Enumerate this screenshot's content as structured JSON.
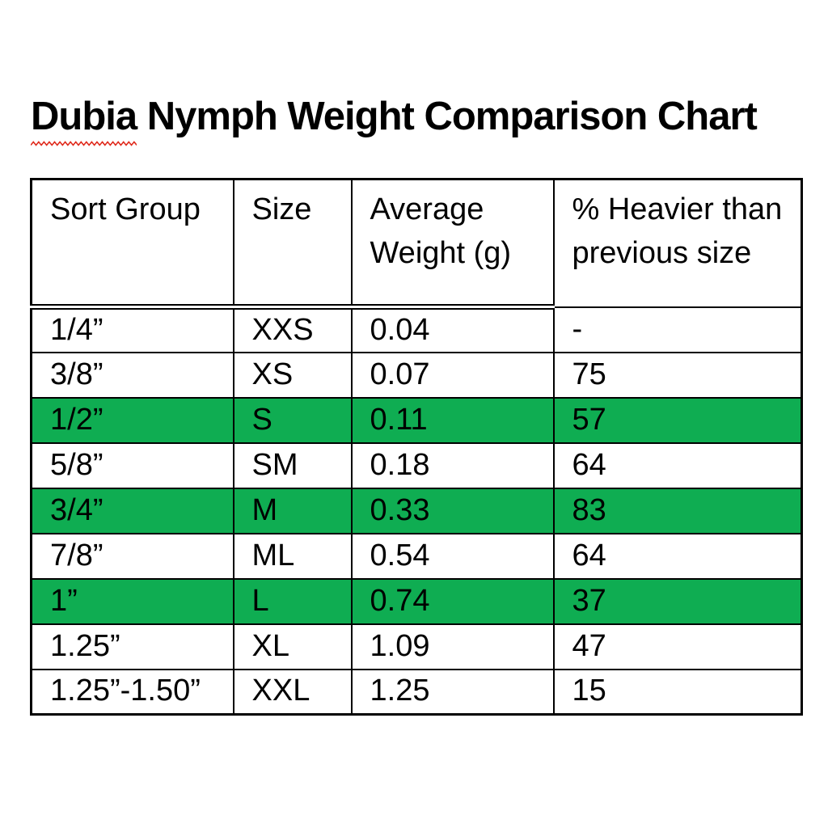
{
  "title": {
    "misspelled_word": "Dubia",
    "rest": " Nymph Weight Comparison Chart",
    "spellcheck_color": "#e02b1d"
  },
  "table": {
    "highlight_color": "#0fad52",
    "columns": [
      "Sort Group",
      "Size",
      "Average Weight (g)",
      "% Heavier than previous size"
    ],
    "rows": [
      {
        "cells": [
          "1/4”",
          "XXS",
          "0.04",
          "-"
        ],
        "highlighted": false
      },
      {
        "cells": [
          "3/8”",
          "XS",
          "0.07",
          "75"
        ],
        "highlighted": false
      },
      {
        "cells": [
          "1/2”",
          "S",
          "0.11",
          "57"
        ],
        "highlighted": true
      },
      {
        "cells": [
          "5/8”",
          "SM",
          "0.18",
          "64"
        ],
        "highlighted": false
      },
      {
        "cells": [
          "3/4”",
          "M",
          "0.33",
          "83"
        ],
        "highlighted": true
      },
      {
        "cells": [
          "7/8”",
          "ML",
          "0.54",
          "64"
        ],
        "highlighted": false
      },
      {
        "cells": [
          "1”",
          "L",
          "0.74",
          "37"
        ],
        "highlighted": true
      },
      {
        "cells": [
          "1.25”",
          "XL",
          "1.09",
          "47"
        ],
        "highlighted": false
      },
      {
        "cells": [
          "1.25”-1.50”",
          "XXL",
          "1.25",
          "15"
        ],
        "highlighted": false
      }
    ]
  }
}
